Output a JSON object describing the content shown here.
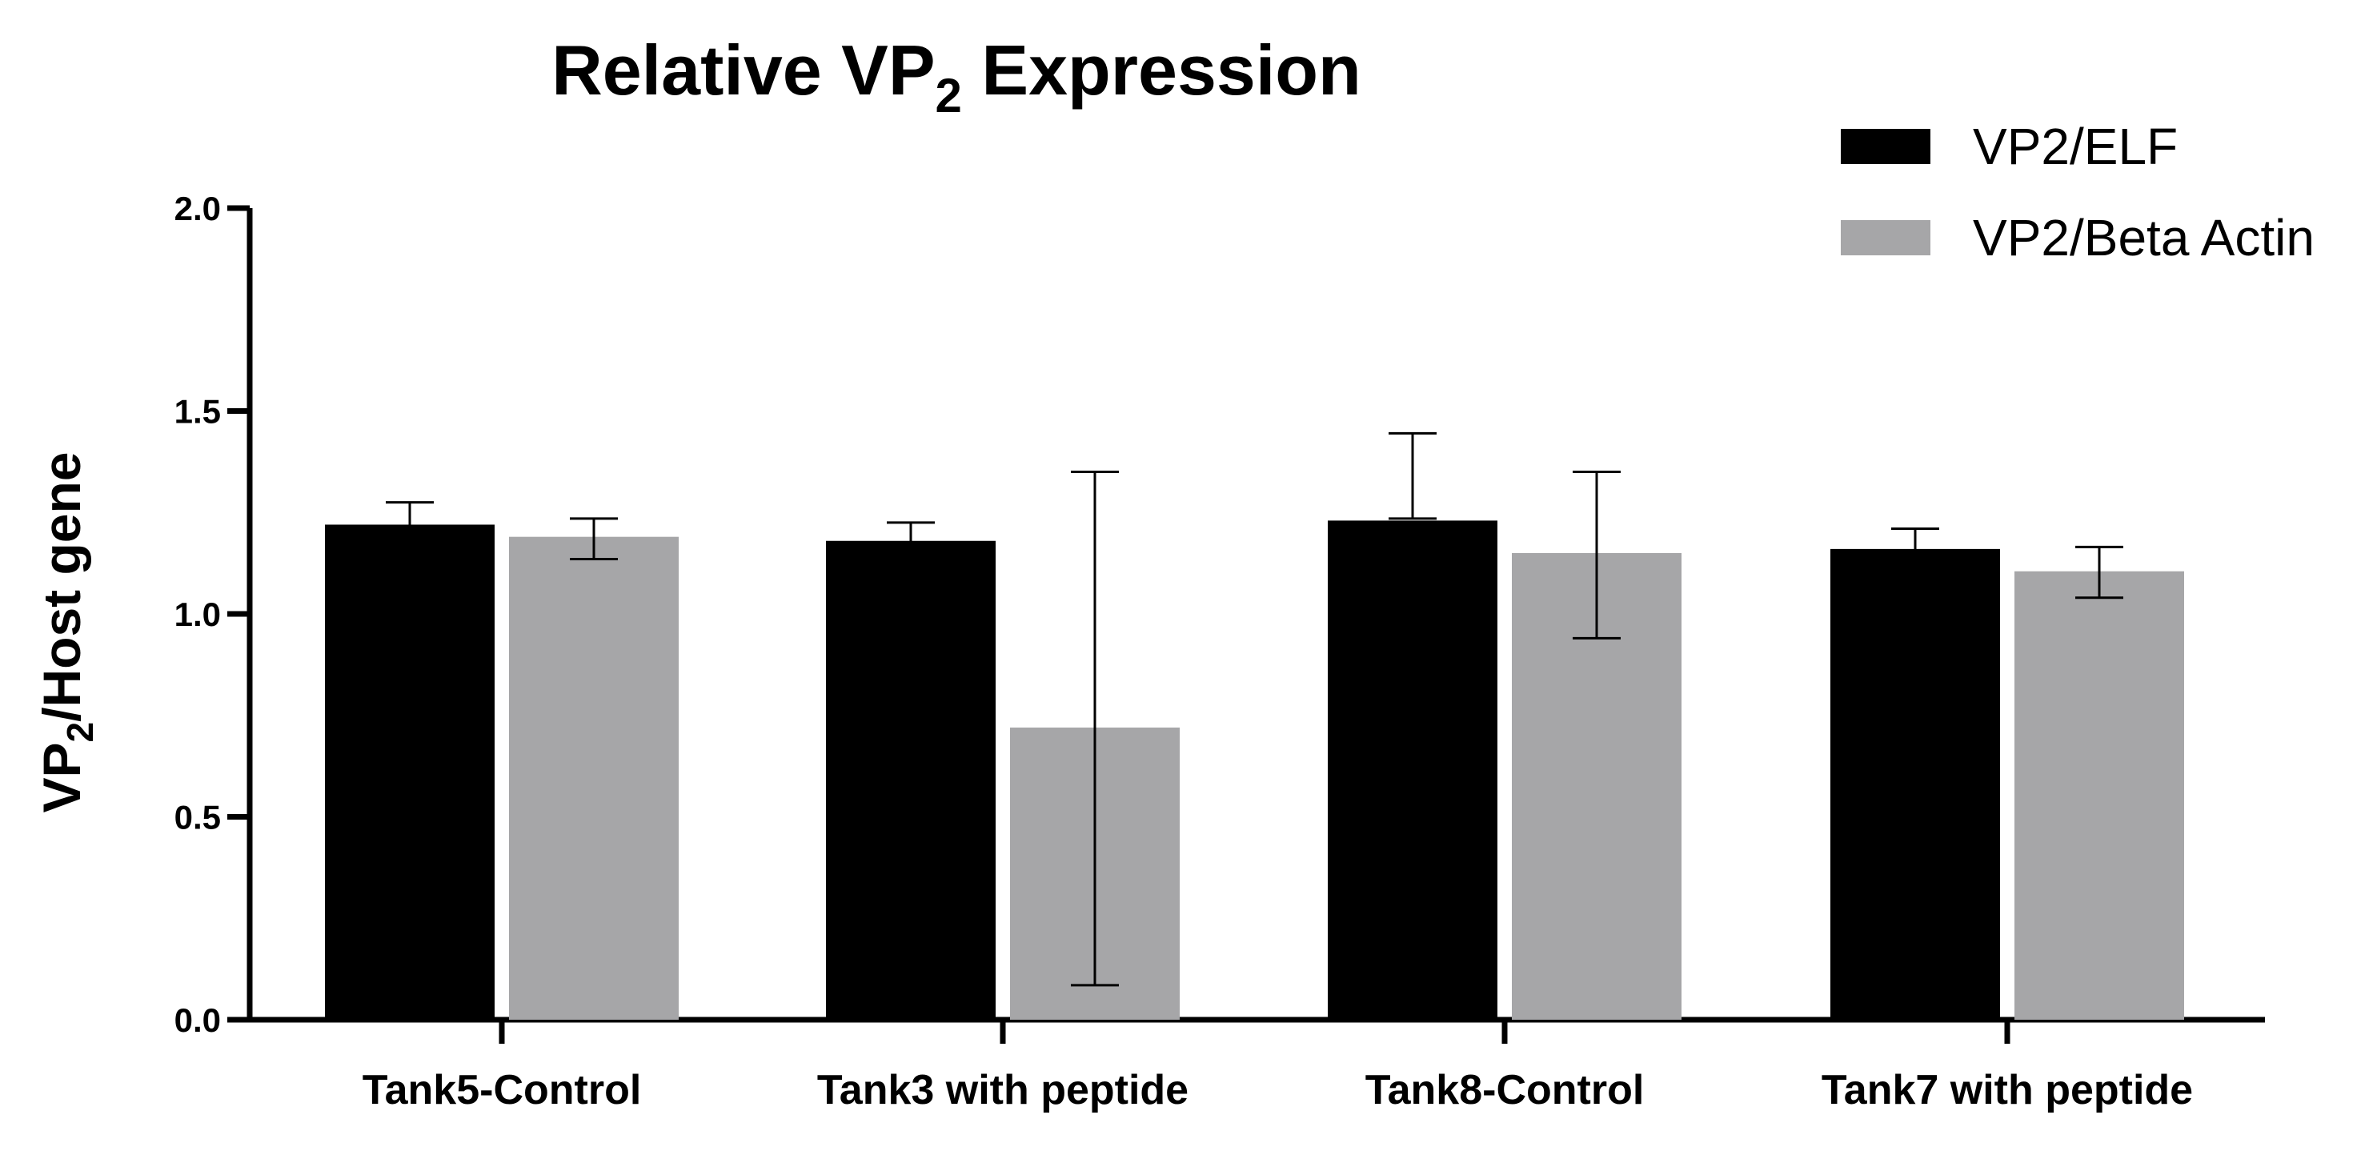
{
  "chart_data": {
    "type": "bar",
    "title": "Relative VP",
    "title_subscript": "2",
    "title_suffix": " Expression",
    "xlabel": "",
    "ylabel": "VP",
    "ylabel_subscript": "2",
    "ylabel_suffix": "/Host gene",
    "ylim": [
      0,
      2.0
    ],
    "yticks": [
      0.0,
      0.5,
      1.0,
      1.5,
      2.0
    ],
    "ytick_labels": [
      "0.0",
      "0.5",
      "1.0",
      "1.5",
      "2.0"
    ],
    "categories": [
      "Tank5-Control",
      "Tank3 with peptide",
      "Tank8-Control",
      "Tank7 with peptide"
    ],
    "series": [
      {
        "name": "VP2/ELF",
        "color": "#000000",
        "values": [
          1.22,
          1.18,
          1.23,
          1.16
        ],
        "error_low": [
          1.175,
          1.14,
          1.235,
          1.105
        ],
        "error_high": [
          1.275,
          1.225,
          1.445,
          1.21
        ]
      },
      {
        "name": "VP2/Beta Actin",
        "color": "#a6a6a8",
        "values": [
          1.19,
          0.72,
          1.15,
          1.105
        ],
        "error_low": [
          1.135,
          0.085,
          0.94,
          1.04
        ],
        "error_high": [
          1.235,
          1.35,
          1.35,
          1.165
        ]
      }
    ],
    "legend_position": "top-right",
    "grid": false
  }
}
